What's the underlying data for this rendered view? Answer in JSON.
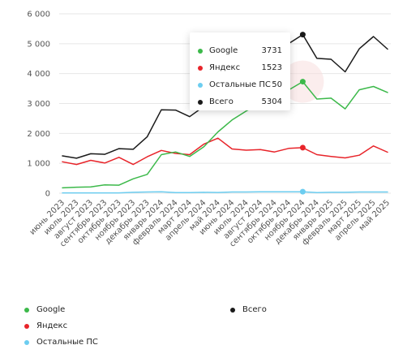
{
  "colors": {
    "google": "#3cb94a",
    "yandex": "#e8242a",
    "other": "#6ccdf0",
    "total": "#1a1a1a",
    "grid": "#e6e6e6"
  },
  "chart_data": {
    "type": "line",
    "x": [
      "июнь 2023",
      "июль 2023",
      "август 2023",
      "сентябрь 2023",
      "октябрь 2023",
      "ноябрь 2023",
      "декабрь 2023",
      "январь 2024",
      "февраль 2024",
      "март 2024",
      "апрель 2024",
      "май 2024",
      "июнь 2024",
      "июль 2024",
      "август 2024",
      "сентябрь 2024",
      "октябрь 2024",
      "ноябрь 2024",
      "декабрь 2024",
      "январь 2025",
      "февраль 2025",
      "март 2025",
      "апрель 2025",
      "май 2025"
    ],
    "ylim": [
      0,
      6000
    ],
    "yticks": [
      0,
      1000,
      2000,
      3000,
      4000,
      5000,
      6000
    ],
    "ytick_labels": [
      "0",
      "1 000",
      "2 000",
      "3 000",
      "4 000",
      "5 000",
      "6 000"
    ],
    "grid": true,
    "legend_position": "bottom",
    "series": [
      {
        "key": "google",
        "name": "Google",
        "values": [
          180,
          200,
          210,
          280,
          270,
          480,
          630,
          1290,
          1380,
          1230,
          1550,
          2050,
          2450,
          2750,
          3000,
          3150,
          3450,
          3731,
          3150,
          3180,
          2820,
          3460,
          3570,
          3370
        ]
      },
      {
        "key": "yandex",
        "name": "Яндекс",
        "values": [
          1050,
          960,
          1100,
          1010,
          1200,
          960,
          1220,
          1430,
          1330,
          1290,
          1640,
          1840,
          1480,
          1440,
          1460,
          1380,
          1500,
          1523,
          1290,
          1230,
          1180,
          1270,
          1580,
          1370
        ]
      },
      {
        "key": "other",
        "name": "Остальные ПС",
        "values": [
          10,
          10,
          10,
          10,
          10,
          30,
          40,
          45,
          20,
          20,
          30,
          25,
          40,
          40,
          50,
          45,
          45,
          50,
          20,
          30,
          30,
          40,
          40,
          40
        ]
      },
      {
        "key": "total",
        "name": "Всего",
        "values": [
          1250,
          1170,
          1320,
          1300,
          1490,
          1470,
          1890,
          2790,
          2780,
          2560,
          2900,
          3700,
          4000,
          4240,
          4520,
          4580,
          5000,
          5304,
          4510,
          4480,
          4060,
          4830,
          5240,
          4820
        ]
      }
    ],
    "highlight_index": 17
  },
  "tooltip": {
    "rows": [
      {
        "key": "google",
        "name": "Google",
        "value": "3731"
      },
      {
        "key": "yandex",
        "name": "Яндекс",
        "value": "1523"
      },
      {
        "key": "other",
        "name": "Остальные ПС",
        "value": "50"
      },
      {
        "key": "total",
        "name": "Всего",
        "value": "5304"
      }
    ]
  },
  "legend": {
    "google": "Google",
    "yandex": "Яндекс",
    "other": "Остальные ПС",
    "total": "Всего"
  }
}
